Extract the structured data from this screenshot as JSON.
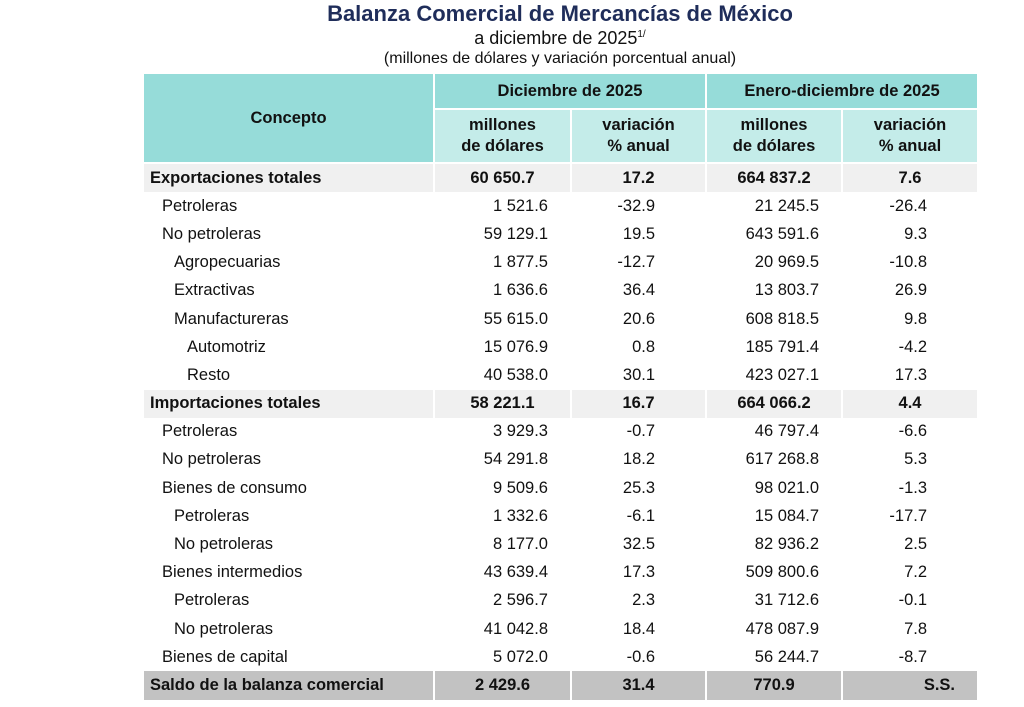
{
  "title": "Balanza Comercial de Mercancías de México",
  "subtitle": "a diciembre de 2025",
  "subtitle_note": "1/",
  "units": "(millones de dólares y variación porcentual anual)",
  "table": {
    "concept_header": "Concepto",
    "groups": [
      "Diciembre de 2025",
      "Enero-diciembre de 2025"
    ],
    "subheaders": [
      {
        "line1": "millones",
        "line2": "de dólares"
      },
      {
        "line1": "variación",
        "line2": "% anual"
      },
      {
        "line1": "millones",
        "line2": "de dólares"
      },
      {
        "line1": "variación",
        "line2": "% anual"
      }
    ],
    "rows": [
      {
        "label": "Exportaciones totales",
        "level": 0,
        "values": [
          "60 650.7",
          "17.2",
          "664 837.2",
          "7.6"
        ]
      },
      {
        "label": "Petroleras",
        "level": 1,
        "values": [
          "1 521.6",
          "-32.9",
          "21 245.5",
          "-26.4"
        ]
      },
      {
        "label": "No petroleras",
        "level": 1,
        "values": [
          "59 129.1",
          "19.5",
          "643 591.6",
          "9.3"
        ]
      },
      {
        "label": "Agropecuarias",
        "level": 2,
        "values": [
          "1 877.5",
          "-12.7",
          "20 969.5",
          "-10.8"
        ]
      },
      {
        "label": "Extractivas",
        "level": 2,
        "values": [
          "1 636.6",
          "36.4",
          "13 803.7",
          "26.9"
        ]
      },
      {
        "label": "Manufactureras",
        "level": 2,
        "values": [
          "55 615.0",
          "20.6",
          "608 818.5",
          "9.8"
        ]
      },
      {
        "label": "Automotriz",
        "level": 3,
        "values": [
          "15 076.9",
          "0.8",
          "185 791.4",
          "-4.2"
        ]
      },
      {
        "label": "Resto",
        "level": 3,
        "values": [
          "40 538.0",
          "30.1",
          "423 027.1",
          "17.3"
        ]
      },
      {
        "label": "Importaciones totales",
        "level": 0,
        "values": [
          "58 221.1",
          "16.7",
          "664 066.2",
          "4.4"
        ]
      },
      {
        "label": "Petroleras",
        "level": 1,
        "values": [
          "3 929.3",
          "-0.7",
          "46 797.4",
          "-6.6"
        ]
      },
      {
        "label": "No petroleras",
        "level": 1,
        "values": [
          "54 291.8",
          "18.2",
          "617 268.8",
          "5.3"
        ]
      },
      {
        "label": "Bienes de consumo",
        "level": 1,
        "values": [
          "9 509.6",
          "25.3",
          "98 021.0",
          "-1.3"
        ]
      },
      {
        "label": "Petroleras",
        "level": 2,
        "values": [
          "1 332.6",
          "-6.1",
          "15 084.7",
          "-17.7"
        ]
      },
      {
        "label": "No petroleras",
        "level": 2,
        "values": [
          "8 177.0",
          "32.5",
          "82 936.2",
          "2.5"
        ]
      },
      {
        "label": "Bienes intermedios",
        "level": 1,
        "values": [
          "43 639.4",
          "17.3",
          "509 800.6",
          "7.2"
        ]
      },
      {
        "label": "Petroleras",
        "level": 2,
        "values": [
          "2 596.7",
          "2.3",
          "31 712.6",
          "-0.1"
        ]
      },
      {
        "label": "No petroleras",
        "level": 2,
        "values": [
          "41 042.8",
          "18.4",
          "478 087.9",
          "7.8"
        ]
      },
      {
        "label": "Bienes de capital",
        "level": 1,
        "values": [
          "5 072.0",
          "-0.6",
          "56 244.7",
          "-8.7"
        ]
      },
      {
        "label": "Saldo de la balanza comercial",
        "level": -1,
        "values": [
          "2 429.6",
          "31.4",
          "770.9",
          "S.S."
        ]
      }
    ]
  }
}
